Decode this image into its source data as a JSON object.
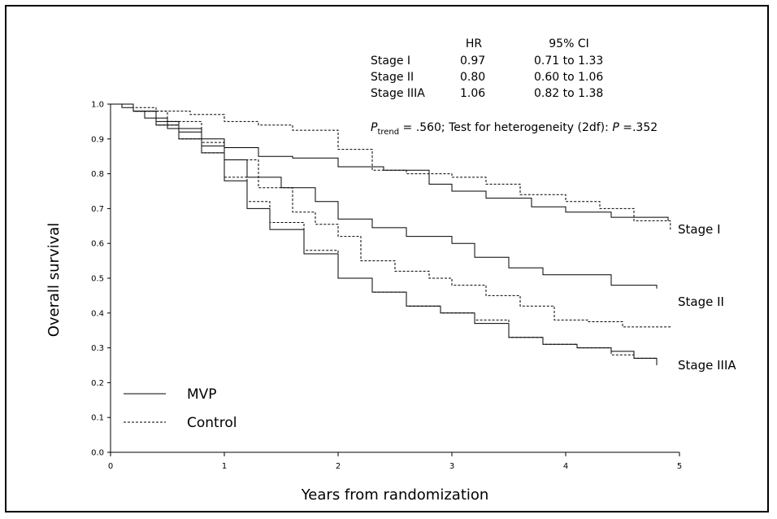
{
  "chart_data": {
    "type": "line",
    "title": "",
    "xlabel": "Years from randomization",
    "ylabel": "Overall survival",
    "xlim": [
      0,
      5
    ],
    "ylim": [
      0.0,
      1.0
    ],
    "x_ticks": [
      "0",
      "1",
      "2",
      "3",
      "4",
      "5"
    ],
    "y_ticks": [
      "0.0",
      "0.1",
      "0.2",
      "0.3",
      "0.4",
      "0.5",
      "0.6",
      "0.7",
      "0.8",
      "0.9",
      "1.0"
    ],
    "legend": {
      "placement": "bottom-left",
      "entries": [
        {
          "label": "MVP",
          "style": "solid"
        },
        {
          "label": "Control",
          "style": "dashed"
        }
      ]
    },
    "hr_table": {
      "header": [
        "",
        "HR",
        "95% CI"
      ],
      "rows": [
        [
          "Stage I",
          "0.97",
          "0.71 to 1.33"
        ],
        [
          "Stage II",
          "0.80",
          "0.60 to 1.06"
        ],
        [
          "Stage IIIA",
          "1.06",
          "0.82 to 1.38"
        ]
      ]
    },
    "stat_line": {
      "p_symbol": "P",
      "p_subscript": "trend",
      "p_value": " = .560;  Test for heterogeneity (2df): ",
      "p2_symbol": "P",
      "p2_value": " =.352"
    },
    "stage_labels": [
      "Stage I",
      "Stage II",
      "Stage IIIA"
    ],
    "series": [
      {
        "group": "Stage I",
        "arm": "MVP",
        "style": "solid",
        "x": [
          0,
          0.1,
          0.2,
          0.3,
          0.5,
          0.8,
          1.0,
          1.3,
          1.6,
          2.0,
          2.4,
          2.8,
          3.0,
          3.3,
          3.7,
          4.0,
          4.4,
          4.9
        ],
        "y": [
          1.0,
          0.99,
          0.98,
          0.96,
          0.93,
          0.9,
          0.875,
          0.85,
          0.845,
          0.82,
          0.81,
          0.77,
          0.75,
          0.73,
          0.705,
          0.69,
          0.675,
          0.665
        ]
      },
      {
        "group": "Stage I",
        "arm": "Control",
        "style": "dashed",
        "x": [
          0,
          0.2,
          0.4,
          0.7,
          1.0,
          1.3,
          1.6,
          2.0,
          2.3,
          2.6,
          3.0,
          3.3,
          3.6,
          4.0,
          4.3,
          4.6,
          4.92
        ],
        "y": [
          1.0,
          0.99,
          0.98,
          0.97,
          0.95,
          0.94,
          0.925,
          0.87,
          0.81,
          0.8,
          0.79,
          0.77,
          0.74,
          0.72,
          0.7,
          0.665,
          0.635
        ]
      },
      {
        "group": "Stage II",
        "arm": "MVP",
        "style": "solid",
        "x": [
          0,
          0.2,
          0.4,
          0.6,
          0.8,
          1.0,
          1.2,
          1.5,
          1.8,
          2.0,
          2.3,
          2.6,
          3.0,
          3.2,
          3.5,
          3.8,
          4.1,
          4.4,
          4.8
        ],
        "y": [
          1.0,
          0.98,
          0.95,
          0.92,
          0.88,
          0.84,
          0.79,
          0.76,
          0.72,
          0.67,
          0.645,
          0.62,
          0.6,
          0.56,
          0.53,
          0.51,
          0.51,
          0.48,
          0.47
        ]
      },
      {
        "group": "Stage II",
        "arm": "Control",
        "style": "dashed",
        "x": [
          0,
          0.2,
          0.5,
          0.8,
          1.0,
          1.3,
          1.6,
          1.8,
          2.0,
          2.2,
          2.5,
          2.8,
          3.0,
          3.3,
          3.6,
          3.9,
          4.2,
          4.5,
          4.92
        ],
        "y": [
          1.0,
          0.98,
          0.95,
          0.89,
          0.84,
          0.76,
          0.69,
          0.655,
          0.62,
          0.55,
          0.52,
          0.5,
          0.48,
          0.45,
          0.42,
          0.38,
          0.375,
          0.36,
          0.355
        ]
      },
      {
        "group": "Stage IIIA",
        "arm": "MVP",
        "style": "solid",
        "x": [
          0,
          0.2,
          0.4,
          0.6,
          0.8,
          1.0,
          1.2,
          1.4,
          1.7,
          2.0,
          2.3,
          2.6,
          2.9,
          3.2,
          3.5,
          3.8,
          4.1,
          4.4,
          4.6,
          4.8
        ],
        "y": [
          1.0,
          0.98,
          0.94,
          0.9,
          0.86,
          0.78,
          0.7,
          0.64,
          0.57,
          0.5,
          0.46,
          0.42,
          0.4,
          0.37,
          0.33,
          0.31,
          0.3,
          0.29,
          0.27,
          0.25
        ]
      },
      {
        "group": "Stage IIIA",
        "arm": "Control",
        "style": "dashed",
        "x": [
          0,
          0.2,
          0.4,
          0.6,
          0.8,
          1.0,
          1.2,
          1.4,
          1.7,
          2.0,
          2.3,
          2.6,
          2.9,
          3.2,
          3.5,
          3.8,
          4.1,
          4.4,
          4.6,
          4.8
        ],
        "y": [
          1.0,
          0.98,
          0.94,
          0.9,
          0.86,
          0.79,
          0.72,
          0.66,
          0.58,
          0.5,
          0.46,
          0.42,
          0.4,
          0.38,
          0.33,
          0.31,
          0.3,
          0.28,
          0.27,
          0.26
        ]
      }
    ]
  }
}
